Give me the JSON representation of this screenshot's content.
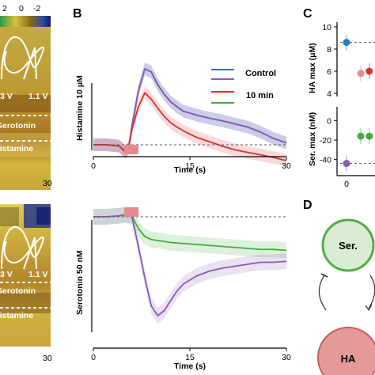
{
  "panels": {
    "A": {
      "colorbar_ticks": [
        "2",
        "0",
        "-2"
      ],
      "voltage_labels": [
        "3 V",
        "1.1 V"
      ],
      "line_labels": [
        "Serotonin",
        "Histamine"
      ],
      "x_end_label": "30"
    },
    "B": {
      "letter": "B"
    },
    "C": {
      "letter": "C"
    },
    "D": {
      "letter": "D",
      "nodes": [
        "Ser.",
        "HA"
      ]
    }
  },
  "colors": {
    "control": "#2b7bba",
    "purple": "#8a5ab6",
    "red": "#d73030",
    "green": "#3fae3f",
    "stim": "#e8898f",
    "node_green_fill": "#d9ecd1",
    "node_green_stroke": "#4fae48",
    "node_red_fill": "#e59a9a",
    "node_red_stroke": "#c85a5a"
  },
  "chart_data": [
    {
      "type": "line",
      "panel": "B-top",
      "ylabel": "Histamine 10 μM",
      "xlabel": "Time (s)",
      "xlim": [
        0,
        30
      ],
      "xticks": [
        "0",
        "15",
        "30"
      ],
      "stim_window_s": [
        5,
        7
      ],
      "legend": [
        "Control",
        "10 min"
      ],
      "series": [
        {
          "name": "Control",
          "color": "#2b7bba",
          "x": [
            0,
            2,
            4,
            5,
            5.5,
            6,
            7,
            8,
            9,
            10,
            11,
            12,
            13,
            14,
            15,
            16,
            18,
            20,
            22,
            24,
            26,
            28,
            30
          ],
          "y": [
            0,
            0,
            -0.02,
            -0.12,
            -0.05,
            0.3,
            0.85,
            1.2,
            1.15,
            0.95,
            0.8,
            0.68,
            0.6,
            0.53,
            0.5,
            0.47,
            0.42,
            0.38,
            0.33,
            0.28,
            0.2,
            0.1,
            0.03
          ]
        },
        {
          "series_color_only": true,
          "color": "#8a5ab6",
          "x": [
            0,
            2,
            4,
            5,
            5.5,
            6,
            7,
            8,
            9,
            10,
            11,
            12,
            13,
            14,
            15,
            16,
            18,
            20,
            22,
            24,
            26,
            28,
            30
          ],
          "y": [
            0,
            0,
            -0.02,
            -0.12,
            -0.05,
            0.3,
            0.85,
            1.2,
            1.15,
            0.95,
            0.8,
            0.68,
            0.6,
            0.53,
            0.5,
            0.47,
            0.42,
            0.38,
            0.33,
            0.28,
            0.2,
            0.1,
            0.03
          ]
        },
        {
          "name": "10 min",
          "color": "#d73030",
          "x": [
            0,
            2,
            4,
            5,
            5.5,
            6,
            7,
            8,
            9,
            10,
            11,
            12,
            13,
            14,
            15,
            16,
            18,
            20,
            22,
            24,
            26,
            28,
            30
          ],
          "y": [
            0,
            0,
            -0.02,
            -0.1,
            -0.04,
            0.25,
            0.6,
            0.82,
            0.72,
            0.58,
            0.45,
            0.35,
            0.28,
            0.22,
            0.17,
            0.12,
            0.05,
            -0.02,
            -0.08,
            -0.12,
            -0.16,
            -0.2,
            -0.25
          ]
        }
      ]
    },
    {
      "type": "line",
      "panel": "B-bottom",
      "ylabel": "Serotonin 50 nM",
      "xlabel": "Time (s)",
      "xlim": [
        0,
        30
      ],
      "xticks": [
        "0",
        "15",
        "30"
      ],
      "stim_window_s": [
        5,
        7
      ],
      "series": [
        {
          "color": "#3fae3f",
          "x": [
            0,
            2,
            4,
            5,
            6,
            7,
            8,
            9,
            10,
            11,
            12,
            14,
            16,
            18,
            20,
            22,
            24,
            26,
            28,
            30
          ],
          "y": [
            0,
            0,
            0.01,
            0.02,
            0.01,
            -0.12,
            -0.2,
            -0.23,
            -0.24,
            -0.25,
            -0.26,
            -0.27,
            -0.28,
            -0.29,
            -0.3,
            -0.31,
            -0.32,
            -0.33,
            -0.33,
            -0.34
          ]
        },
        {
          "color": "#8a5ab6",
          "x": [
            0,
            2,
            4,
            5,
            6,
            7,
            8,
            9,
            10,
            11,
            12,
            13,
            14,
            16,
            18,
            20,
            22,
            24,
            26,
            28,
            30
          ],
          "y": [
            0,
            0,
            0.01,
            0.02,
            0,
            -0.3,
            -0.62,
            -0.9,
            -1.0,
            -0.95,
            -0.85,
            -0.75,
            -0.68,
            -0.6,
            -0.55,
            -0.52,
            -0.5,
            -0.48,
            -0.46,
            -0.46,
            -0.45
          ]
        }
      ]
    },
    {
      "type": "scatter",
      "panel": "C-top",
      "ylabel": "HA max (μM)",
      "yticks": [
        "10",
        "8",
        "6",
        "4"
      ],
      "ylim": [
        4,
        10
      ],
      "reference_line": 8.6,
      "points": [
        {
          "x": 0,
          "y": 8.6,
          "color": "#2b7bba"
        },
        {
          "x": 1,
          "y": 5.8,
          "color": "#e8898f"
        },
        {
          "x": 1.6,
          "y": 6.0,
          "color": "#d73030"
        }
      ]
    },
    {
      "type": "scatter",
      "panel": "C-bottom",
      "ylabel": "Ser. max (nM)",
      "yticks": [
        "0",
        "-20",
        "-40"
      ],
      "ylim": [
        -50,
        10
      ],
      "reference_line": -44,
      "xticks": [
        "0"
      ],
      "points": [
        {
          "x": 0,
          "y": -44,
          "color": "#8a5ab6"
        },
        {
          "x": 1,
          "y": -16,
          "color": "#3fae3f"
        },
        {
          "x": 1.6,
          "y": -16,
          "color": "#3fae3f"
        }
      ]
    }
  ]
}
